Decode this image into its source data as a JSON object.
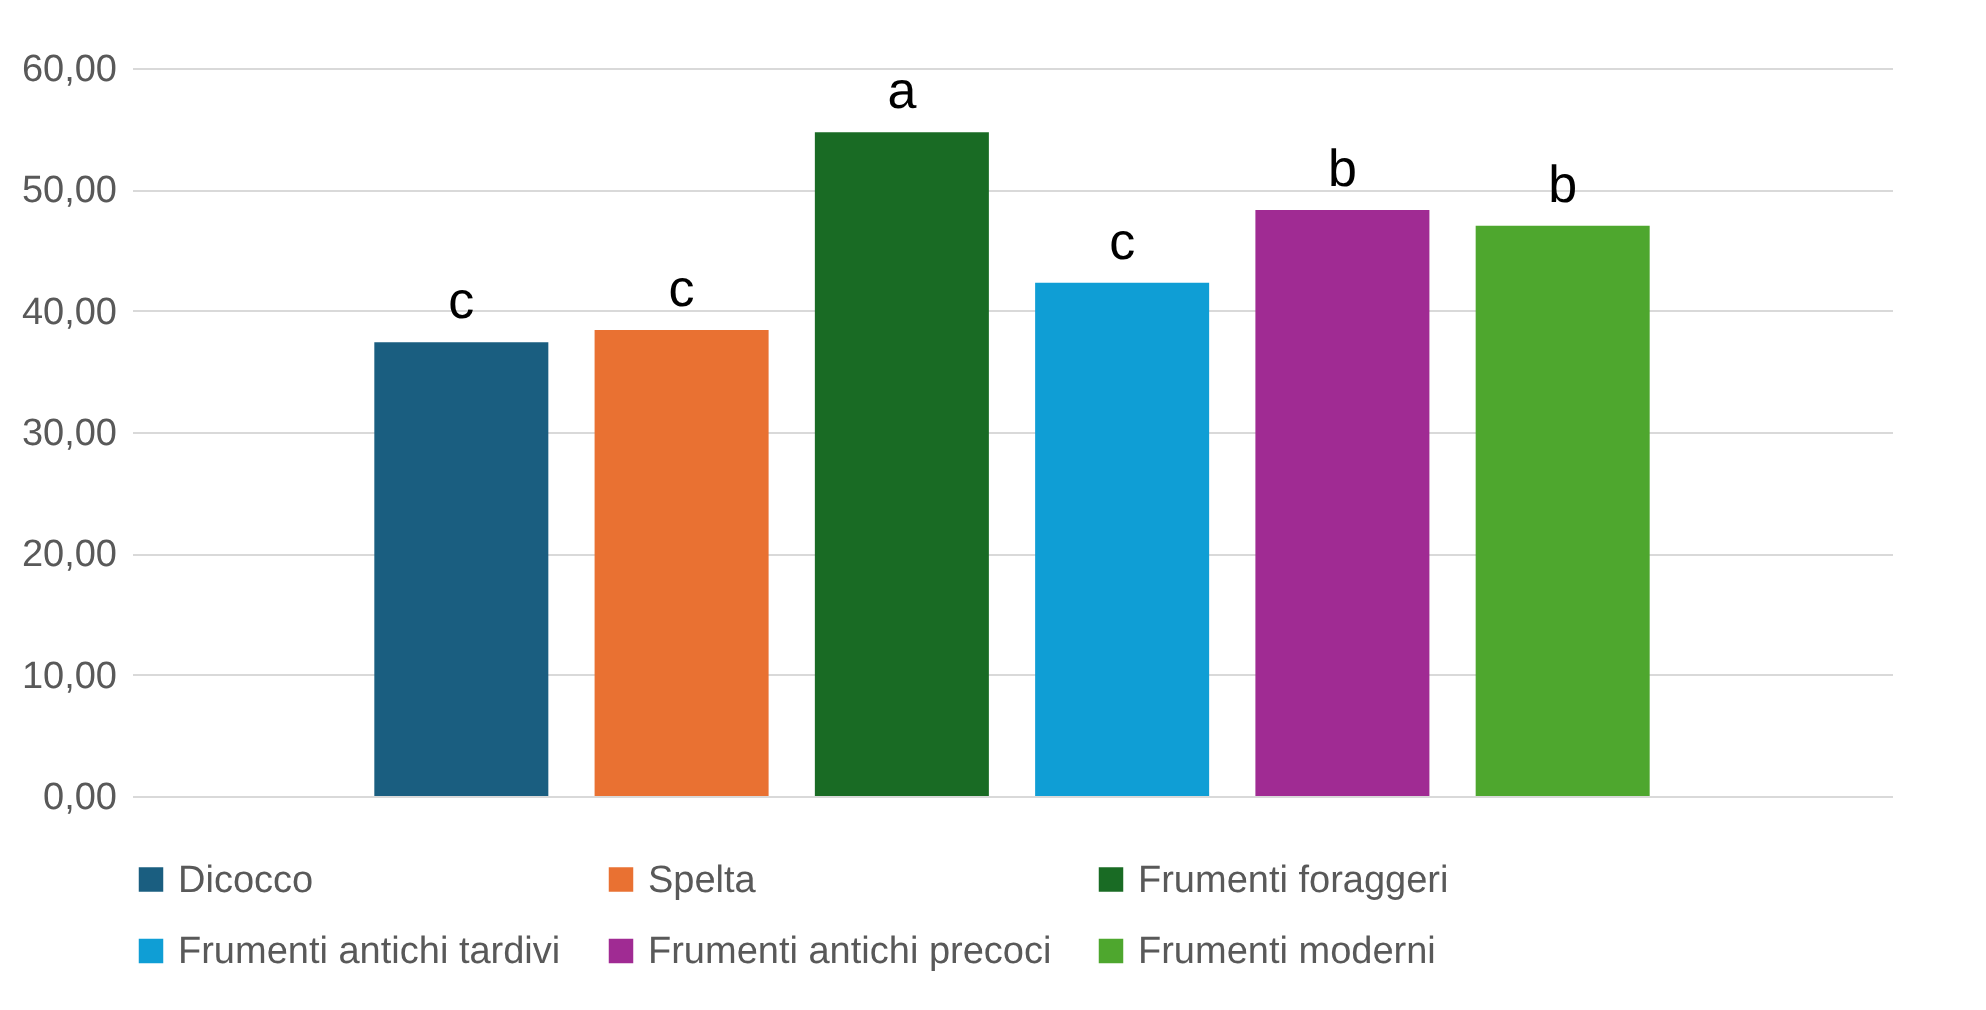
{
  "chart_data": {
    "type": "bar",
    "categories": [
      null
    ],
    "series": [
      {
        "name": "Dicocco",
        "color": "#1a5e80",
        "values": [
          37.4
        ]
      },
      {
        "name": "Spelta",
        "color": "#e97132",
        "values": [
          38.4
        ]
      },
      {
        "name": "Frumenti foraggeri",
        "color": "#196b24",
        "values": [
          54.7
        ]
      },
      {
        "name": "Frumenti antichi tardivi",
        "color": "#0f9ed5",
        "values": [
          42.3
        ]
      },
      {
        "name": "Frumenti antichi precoci",
        "color": "#a02b93",
        "values": [
          48.3
        ]
      },
      {
        "name": "Frumenti moderni",
        "color": "#4ea72e",
        "values": [
          47.0
        ]
      }
    ],
    "annotations": [
      "c",
      "c",
      "a",
      "c",
      "b",
      "b"
    ],
    "ylim": [
      0,
      60
    ],
    "yticks": [
      {
        "value": 0,
        "label": "0,00"
      },
      {
        "value": 10,
        "label": "10,00"
      },
      {
        "value": 20,
        "label": "20,00"
      },
      {
        "value": 30,
        "label": "30,00"
      },
      {
        "value": 40,
        "label": "40,00"
      },
      {
        "value": 50,
        "label": "50,00"
      },
      {
        "value": 60,
        "label": "60,00"
      }
    ],
    "grid": "y",
    "legend": "bottom"
  }
}
